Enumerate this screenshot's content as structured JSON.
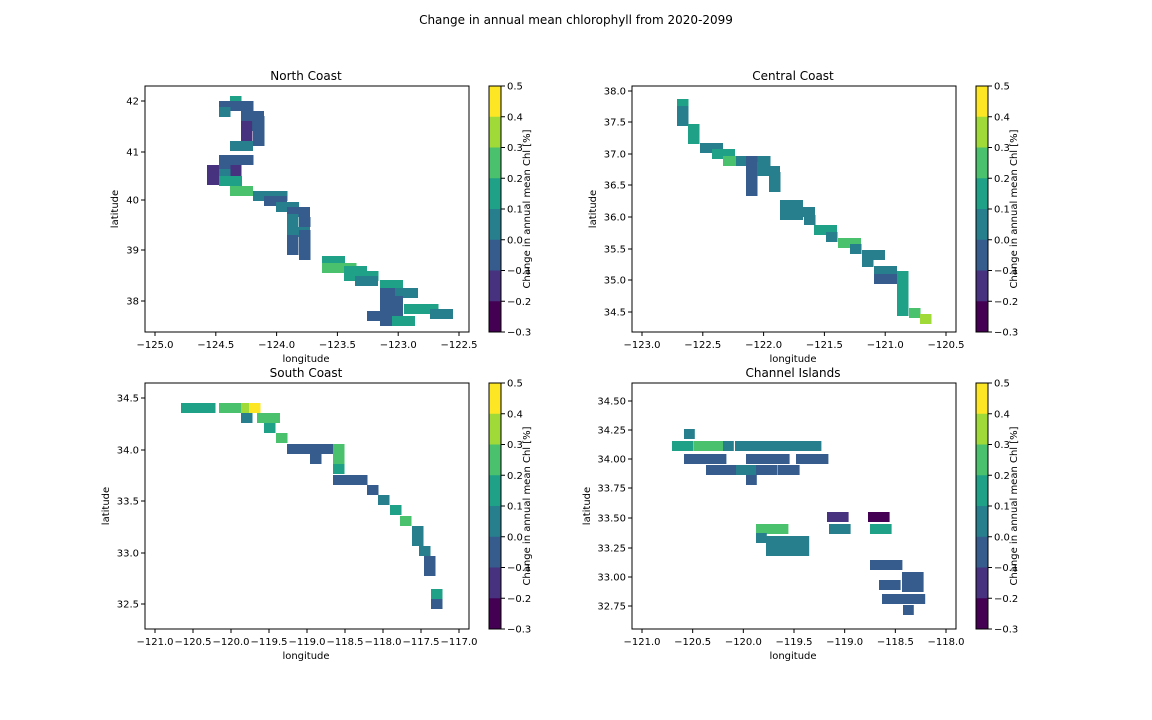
{
  "figure_title": "Change in annual mean chlorophyll from 2020-2099",
  "colorbar": {
    "label": "Change in annual mean Chl [%]",
    "ticks": [
      "0.5",
      "0.4",
      "0.3",
      "0.2",
      "0.1",
      "0.0",
      "−0.1",
      "−0.2",
      "−0.3"
    ],
    "colors": [
      "#fde725",
      "#a0da39",
      "#4ac16d",
      "#1fa187",
      "#277f8e",
      "#365c8d",
      "#46327e",
      "#440154"
    ]
  },
  "chart_data": [
    {
      "type": "heatmap",
      "title": "North Coast",
      "xlabel": "longitude",
      "ylabel": "latitude",
      "xticks": [
        "−125.0",
        "−124.5",
        "−124.0",
        "−123.5",
        "−123.0",
        "−122.5"
      ],
      "yticks": [
        "42",
        "41",
        "40",
        "39",
        "38"
      ],
      "cells": [
        [
          0.15,
          0.0,
          0.05,
          -0.05,
          0.05,
          0.0,
          -0.2,
          0.05,
          0.0,
          -0.15,
          0.0,
          0.05,
          0.15,
          0.25,
          0.05,
          0.0,
          0.05,
          0.0,
          0.05,
          0.0,
          0.05,
          0.0,
          0.0,
          -0.05,
          0.15,
          0.2,
          0.15,
          0.15,
          0.05,
          0.15,
          0.0,
          0.1,
          0.0,
          0.15,
          0.05,
          0.0,
          0.15,
          0.1,
          0.0,
          0.1,
          0.05,
          0.15,
          0.15,
          0.0,
          -0.05
        ]
      ]
    },
    {
      "type": "heatmap",
      "title": "Central Coast",
      "xlabel": "longitude",
      "ylabel": "latitude",
      "xticks": [
        "−123.0",
        "−122.5",
        "−122.0",
        "−121.5",
        "−121.0",
        "−120.5"
      ],
      "yticks": [
        "38.0",
        "37.5",
        "37.0",
        "36.5",
        "36.0",
        "35.5",
        "35.0",
        "34.5"
      ],
      "cells": [
        [
          0.15,
          0.05,
          0.15,
          0.05,
          0.15,
          0.25,
          0.05,
          0.0,
          0.05,
          0.05,
          0.1,
          0.1,
          0.05,
          0.1,
          0.05,
          0.15,
          0.1,
          0.25,
          0.1,
          0.05,
          0.05,
          0.05,
          -0.05,
          0.15,
          0.15,
          0.15,
          0.3,
          0.35,
          0.1
        ]
      ]
    },
    {
      "type": "heatmap",
      "title": "South Coast",
      "xlabel": "longitude",
      "ylabel": "latitude",
      "xticks": [
        "−121.0",
        "−120.5",
        "−120.0",
        "−119.5",
        "−119.0",
        "−118.5",
        "−118.0",
        "−117.5",
        "−117.0"
      ],
      "yticks": [
        "34.5",
        "34.0",
        "33.5",
        "33.0",
        "32.5"
      ],
      "cells": [
        [
          0.15,
          0.25,
          0.35,
          0.45,
          0.25,
          0.15,
          0.25,
          0.1,
          0.0,
          0.0,
          0.25,
          0.15,
          0.0,
          0.0,
          0.1,
          0.15,
          0.25,
          0.1,
          0.05,
          0.1,
          0.0,
          0.15,
          -0.05,
          -0.1
        ]
      ]
    },
    {
      "type": "heatmap",
      "title": "Channel Islands",
      "xlabel": "longitude",
      "ylabel": "latitude",
      "xticks": [
        "−121.0",
        "−120.5",
        "−120.0",
        "−119.5",
        "−119.0",
        "−118.5",
        "−118.0"
      ],
      "yticks": [
        "34.50",
        "34.25",
        "34.00",
        "33.75",
        "33.50",
        "33.25",
        "33.00",
        "32.75"
      ],
      "cells": [
        [
          0.1,
          0.15,
          0.25,
          0.1,
          0.05,
          -0.05,
          -0.1,
          -0.05,
          -0.1,
          -0.05,
          -0.1,
          0.05,
          -0.1,
          -0.05,
          -0.1,
          -0.2,
          -0.25
        ]
      ]
    }
  ]
}
